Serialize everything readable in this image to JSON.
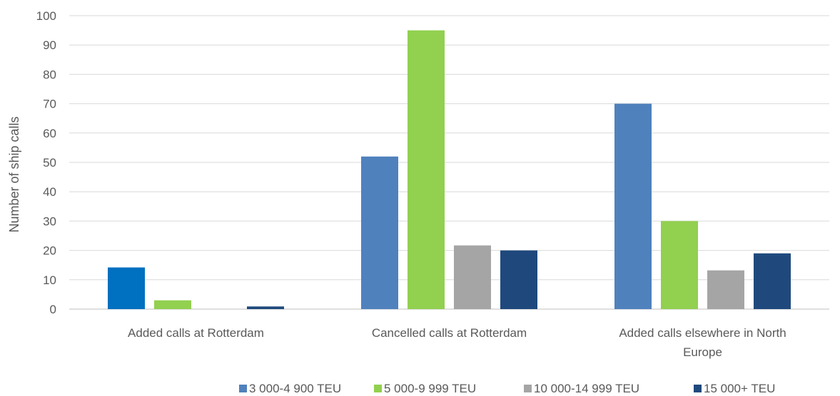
{
  "chart_data": {
    "type": "bar",
    "title": "",
    "xlabel": "",
    "ylabel": "Number of ship calls",
    "ylim": [
      0,
      100
    ],
    "yticks": [
      0,
      10,
      20,
      30,
      40,
      50,
      60,
      70,
      80,
      90,
      100
    ],
    "grid": "horizontal",
    "legend_position": "bottom",
    "categories": [
      [
        "Added calls at Rotterdam"
      ],
      [
        "Cancelled calls at Rotterdam"
      ],
      [
        "Added calls elsewhere in North",
        "Europe"
      ]
    ],
    "series": [
      {
        "name": "3 000-4 900 TEU",
        "color": "#4f81bd",
        "values": [
          14.2,
          52,
          70
        ]
      },
      {
        "name": "5 000-9 999 TEU",
        "color": "#92d050",
        "values": [
          3,
          95,
          30
        ]
      },
      {
        "name": "10 000-14 999 TEU",
        "color": "#a5a5a5",
        "values": [
          0,
          21.7,
          13.2
        ]
      },
      {
        "name": "15 000+ TEU",
        "color": "#1f497d",
        "values": [
          0.9,
          20,
          19
        ]
      }
    ],
    "point_colors": {
      "0-0": "#0070c0"
    }
  }
}
